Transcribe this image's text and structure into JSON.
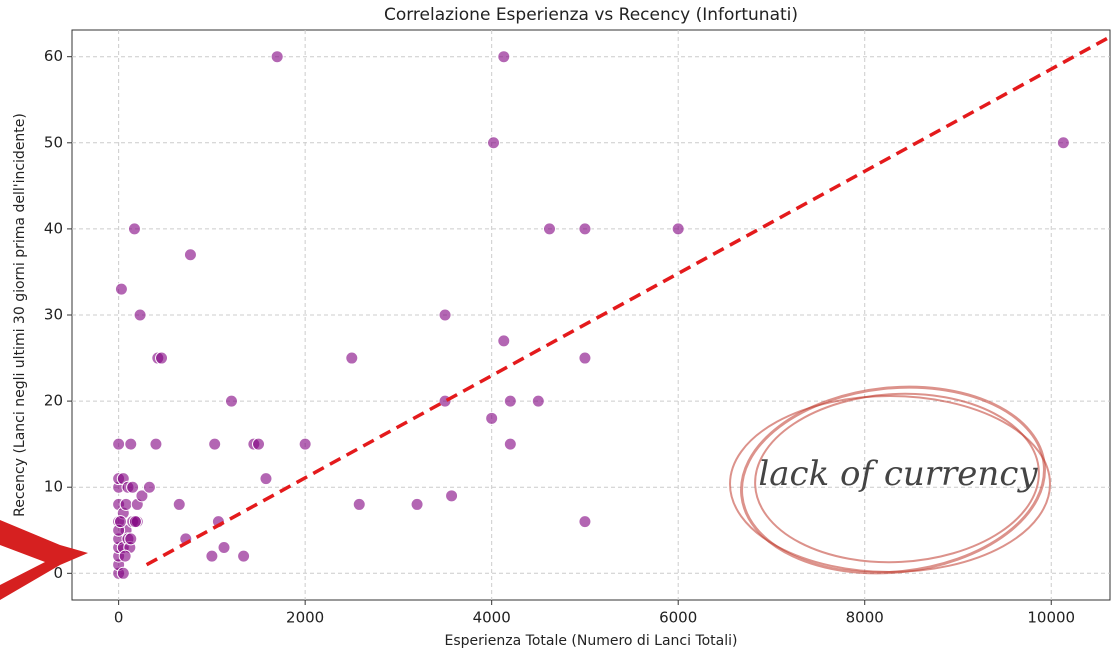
{
  "chart_data": {
    "type": "scatter",
    "title": "Correlazione Esperienza vs Recency (Infortunati)",
    "x_label": "Esperienza Totale (Numero di Lanci Totali)",
    "y_label": "Recency (Lanci negli ultimi 30 giorni prima dell'incidente)",
    "annotation": "lack of currency",
    "color": "#800080",
    "x": [
      0,
      0,
      0,
      0,
      0,
      0,
      0,
      0,
      0,
      0,
      30,
      50,
      50,
      50,
      50,
      80,
      80,
      100,
      100,
      120,
      130,
      150,
      170,
      200,
      200,
      230,
      250,
      330,
      400,
      420,
      460,
      650,
      720,
      770,
      1000,
      1030,
      1070,
      1130,
      1210,
      1340,
      1450,
      1500,
      1580,
      1700,
      2000,
      2500,
      2580,
      3200,
      3500,
      3500,
      3570,
      4000,
      4020,
      4130,
      4130,
      4200,
      4200,
      4500,
      4620,
      5000,
      5000,
      5000,
      6000,
      10130,
      0,
      20,
      150,
      180,
      130,
      70
    ],
    "y": [
      0,
      1,
      2,
      3,
      4,
      6,
      8,
      10,
      11,
      15,
      33,
      0,
      3,
      7,
      11,
      5,
      8,
      10,
      4,
      3,
      15,
      6,
      40,
      6,
      8,
      30,
      9,
      10,
      15,
      25,
      25,
      8,
      4,
      37,
      2,
      15,
      6,
      3,
      20,
      2,
      15,
      15,
      11,
      60,
      15,
      25,
      8,
      8,
      30,
      20,
      9,
      18,
      50,
      27,
      60,
      20,
      15,
      20,
      40,
      40,
      25,
      6,
      40,
      50,
      5,
      6,
      10,
      6,
      4,
      2
    ],
    "trend_line": {
      "x": [
        300,
        10630
      ],
      "y": [
        1,
        62.3
      ],
      "color": "#e41a1c"
    },
    "xlim": [
      -500,
      10630
    ],
    "ylim": [
      -3.1,
      63.1
    ],
    "xticks": [
      0,
      2000,
      4000,
      6000,
      8000,
      10000
    ],
    "yticks": [
      0,
      10,
      20,
      30,
      40,
      50,
      60
    ],
    "grid": true
  }
}
